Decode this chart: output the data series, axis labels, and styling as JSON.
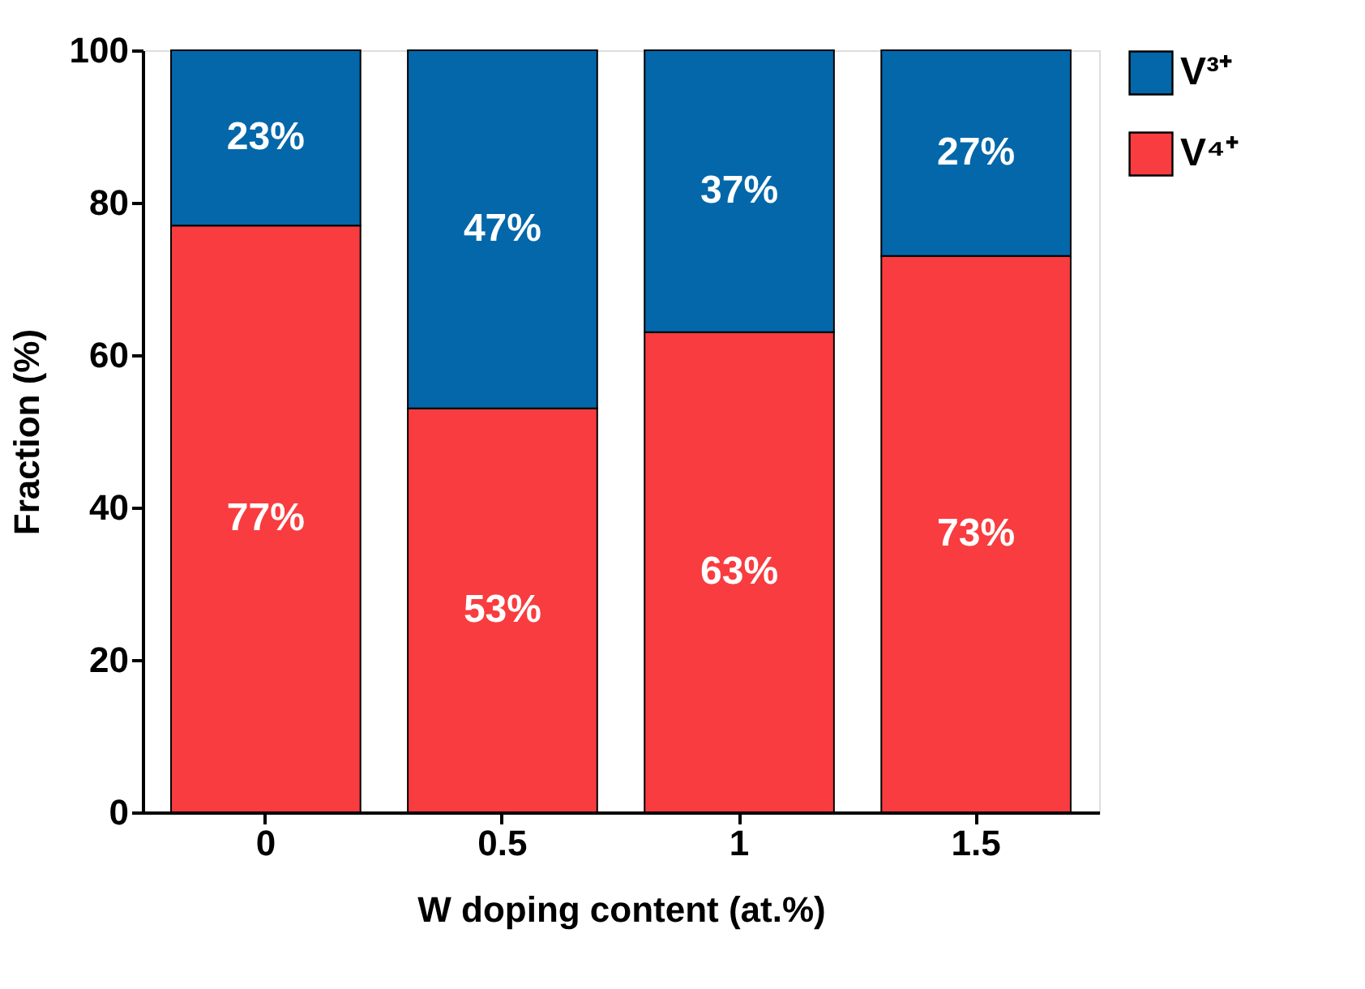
{
  "chart_data": {
    "type": "bar",
    "stacked": true,
    "xlabel": "W doping content (at.%)",
    "ylabel": "Fraction (%)",
    "categories": [
      "0",
      "0.5",
      "1",
      "1.5"
    ],
    "series": [
      {
        "name": "V⁴⁺",
        "color": "#f93c3f",
        "values": [
          77,
          53,
          63,
          73
        ],
        "value_labels": [
          "77%",
          "53%",
          "63%",
          "73%"
        ]
      },
      {
        "name": "V³⁺",
        "color": "#0367aa",
        "values": [
          23,
          47,
          37,
          27
        ],
        "value_labels": [
          "23%",
          "47%",
          "37%",
          "27%"
        ]
      }
    ],
    "ylim": [
      0,
      100
    ],
    "yticks": [
      0,
      20,
      40,
      60,
      80,
      100
    ],
    "grid": false,
    "legend": "right"
  }
}
